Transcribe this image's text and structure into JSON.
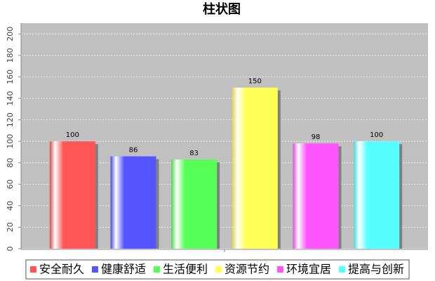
{
  "chart_data": {
    "type": "bar",
    "title": "柱状图",
    "categories": [
      null
    ],
    "series": [
      {
        "name": "安全耐久",
        "color": "#ff5555",
        "values": [
          100
        ]
      },
      {
        "name": "健康舒适",
        "color": "#5555ff",
        "values": [
          86
        ]
      },
      {
        "name": "生活便利",
        "color": "#55ff55",
        "values": [
          83
        ]
      },
      {
        "name": "资源节约",
        "color": "#ffff55",
        "values": [
          150
        ]
      },
      {
        "name": "环境宜居",
        "color": "#ff55ff",
        "values": [
          98
        ]
      },
      {
        "name": "提高与创新",
        "color": "#55ffff",
        "values": [
          100
        ]
      }
    ],
    "ylim": [
      0,
      210
    ],
    "yticks": [
      0,
      20,
      40,
      60,
      80,
      100,
      120,
      140,
      160,
      180,
      200
    ],
    "grid": true,
    "legend": "bottom"
  }
}
